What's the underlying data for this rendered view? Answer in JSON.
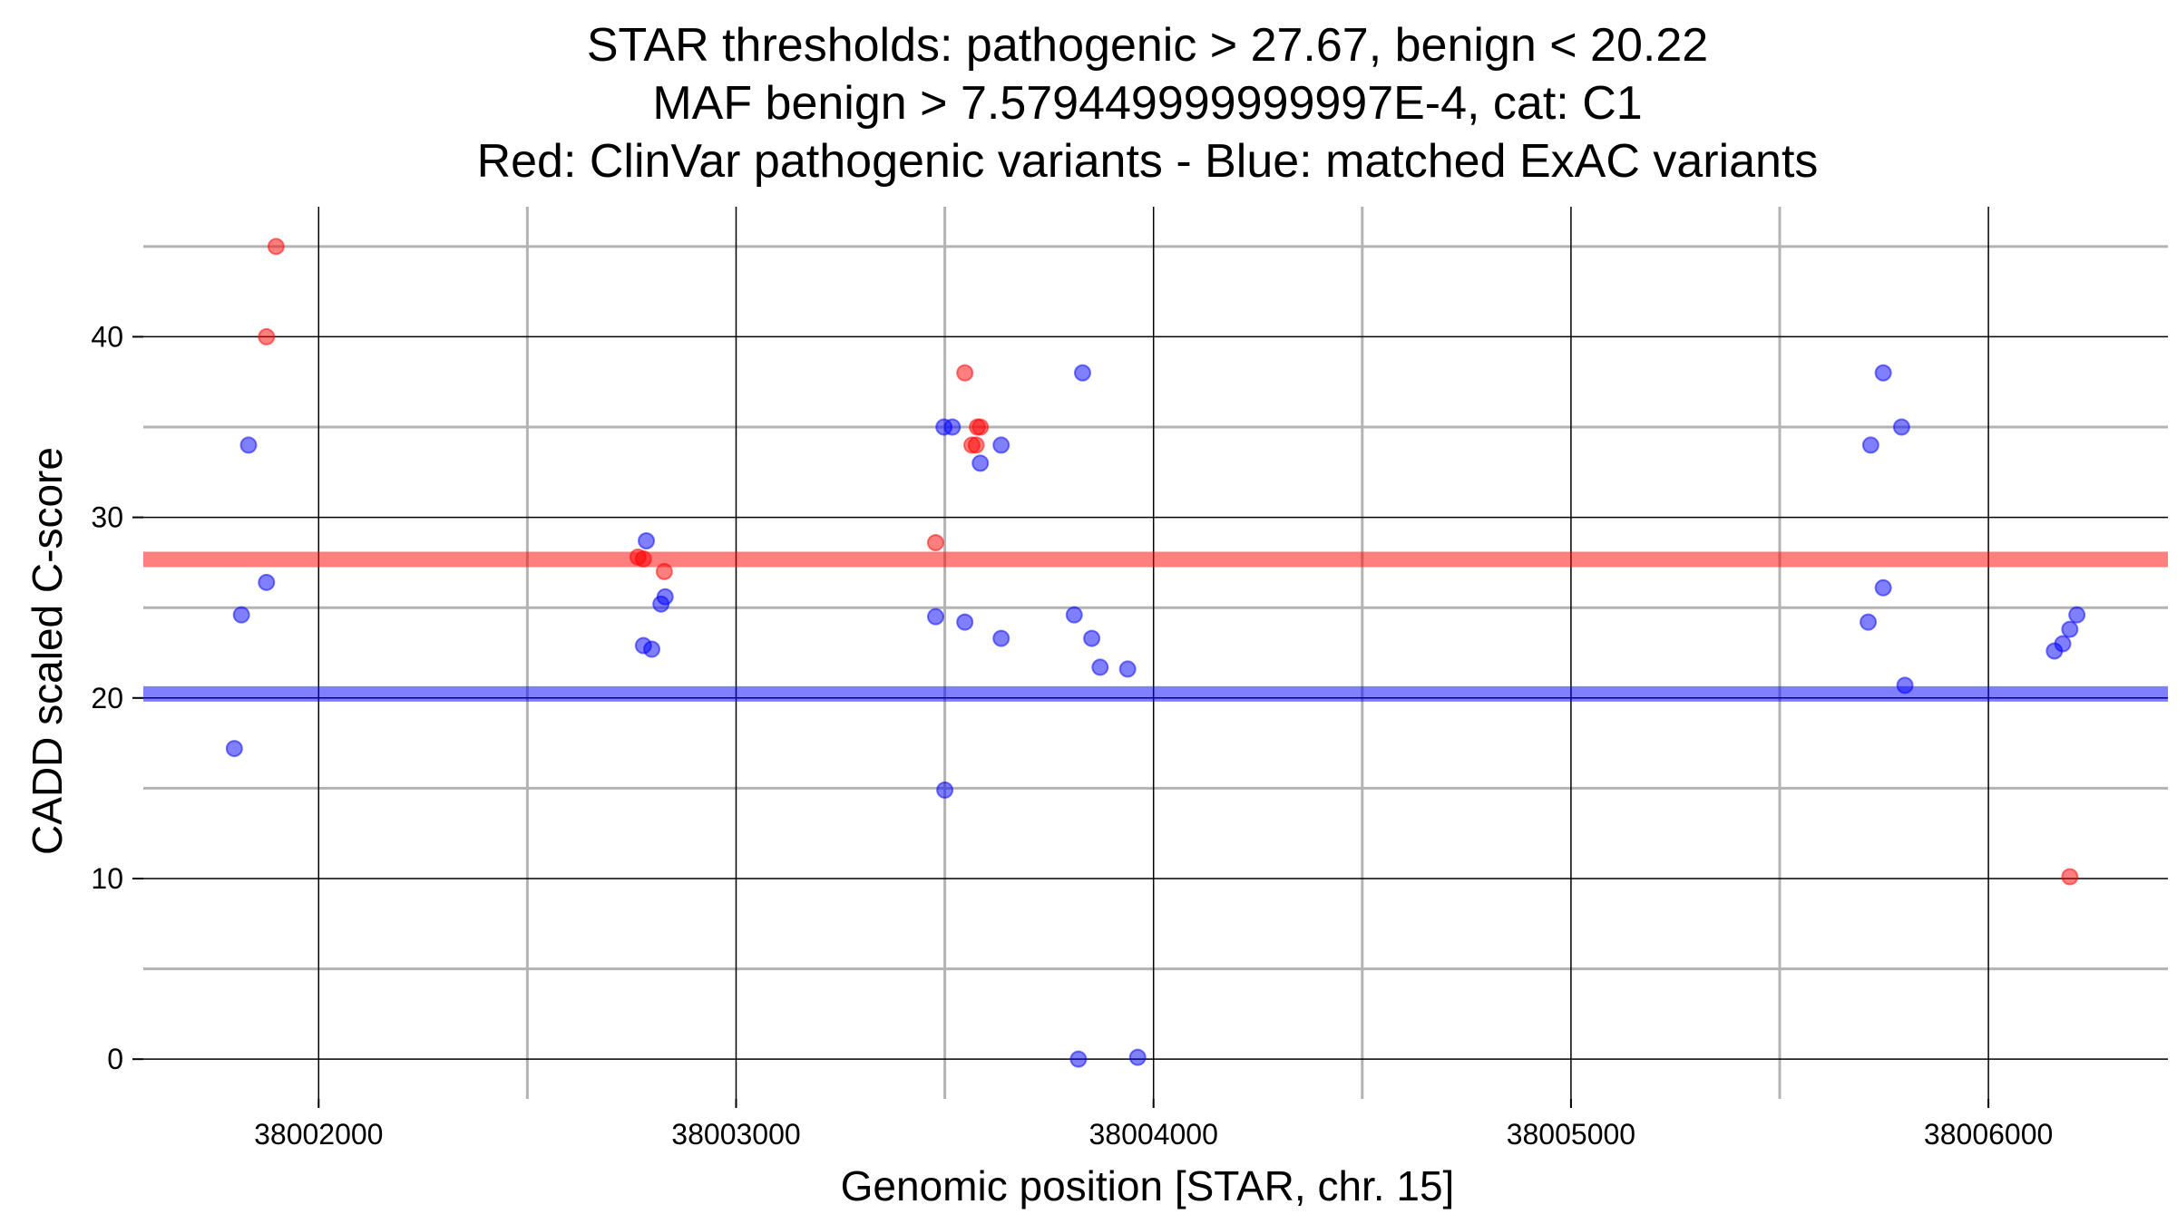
{
  "chart_data": {
    "type": "scatter",
    "title_lines": [
      "STAR thresholds: pathogenic > 27.67, benign < 20.22",
      "MAF benign > 7.579449999999997E-4, cat: C1",
      "Red: ClinVar pathogenic variants - Blue: matched ExAC variants"
    ],
    "xlabel": "Genomic position [STAR, chr. 15]",
    "ylabel": "CADD scaled C-score",
    "xlim": [
      38001580,
      38006430
    ],
    "ylim": [
      -2.2,
      47.2
    ],
    "x_ticks": [
      38002000,
      38003000,
      38004000,
      38005000,
      38006000
    ],
    "x_tick_labels": [
      "38002000",
      "38003000",
      "38004000",
      "38005000",
      "38006000"
    ],
    "y_ticks": [
      0,
      10,
      20,
      30,
      40
    ],
    "y_tick_labels": [
      "0",
      "10",
      "20",
      "30",
      "40"
    ],
    "x_minor_grid": [
      38002500,
      38003500,
      38004500,
      38005500
    ],
    "y_minor_grid": [
      5,
      15,
      25,
      35,
      45
    ],
    "thresholds": [
      {
        "name": "pathogenic",
        "value": 27.67,
        "color": "#ff0000"
      },
      {
        "name": "benign",
        "value": 20.22,
        "color": "#0000ff"
      }
    ],
    "series": [
      {
        "name": "ClinVar pathogenic variants",
        "color": "#ff0000",
        "points": [
          {
            "x": 38001898,
            "y": 45.0
          },
          {
            "x": 38001875,
            "y": 40.0
          },
          {
            "x": 38002765,
            "y": 27.8
          },
          {
            "x": 38002778,
            "y": 27.7
          },
          {
            "x": 38002828,
            "y": 27.0
          },
          {
            "x": 38003478,
            "y": 28.6
          },
          {
            "x": 38003548,
            "y": 38.0
          },
          {
            "x": 38003565,
            "y": 34.0
          },
          {
            "x": 38003575,
            "y": 34.0
          },
          {
            "x": 38003578,
            "y": 35.0
          },
          {
            "x": 38003585,
            "y": 35.0
          },
          {
            "x": 38006195,
            "y": 10.1
          }
        ]
      },
      {
        "name": "matched ExAC variants",
        "color": "#0000ff",
        "points": [
          {
            "x": 38001832,
            "y": 34.0
          },
          {
            "x": 38001875,
            "y": 26.4
          },
          {
            "x": 38001815,
            "y": 24.6
          },
          {
            "x": 38001798,
            "y": 17.2
          },
          {
            "x": 38002785,
            "y": 28.7
          },
          {
            "x": 38002830,
            "y": 25.6
          },
          {
            "x": 38002820,
            "y": 25.2
          },
          {
            "x": 38002778,
            "y": 22.9
          },
          {
            "x": 38002798,
            "y": 22.7
          },
          {
            "x": 38003498,
            "y": 35.0
          },
          {
            "x": 38003518,
            "y": 35.0
          },
          {
            "x": 38003635,
            "y": 34.0
          },
          {
            "x": 38003585,
            "y": 33.0
          },
          {
            "x": 38003478,
            "y": 24.5
          },
          {
            "x": 38003548,
            "y": 24.2
          },
          {
            "x": 38003635,
            "y": 23.3
          },
          {
            "x": 38003500,
            "y": 14.9
          },
          {
            "x": 38003830,
            "y": 38.0
          },
          {
            "x": 38003810,
            "y": 24.6
          },
          {
            "x": 38003852,
            "y": 23.3
          },
          {
            "x": 38003872,
            "y": 21.7
          },
          {
            "x": 38003938,
            "y": 21.6
          },
          {
            "x": 38003820,
            "y": 0.0
          },
          {
            "x": 38003962,
            "y": 0.1
          },
          {
            "x": 38005748,
            "y": 38.0
          },
          {
            "x": 38005718,
            "y": 34.0
          },
          {
            "x": 38005792,
            "y": 35.0
          },
          {
            "x": 38005748,
            "y": 26.1
          },
          {
            "x": 38005712,
            "y": 24.2
          },
          {
            "x": 38005800,
            "y": 20.7
          },
          {
            "x": 38006212,
            "y": 24.6
          },
          {
            "x": 38006195,
            "y": 23.8
          },
          {
            "x": 38006178,
            "y": 23.0
          },
          {
            "x": 38006158,
            "y": 22.6
          }
        ]
      }
    ]
  }
}
